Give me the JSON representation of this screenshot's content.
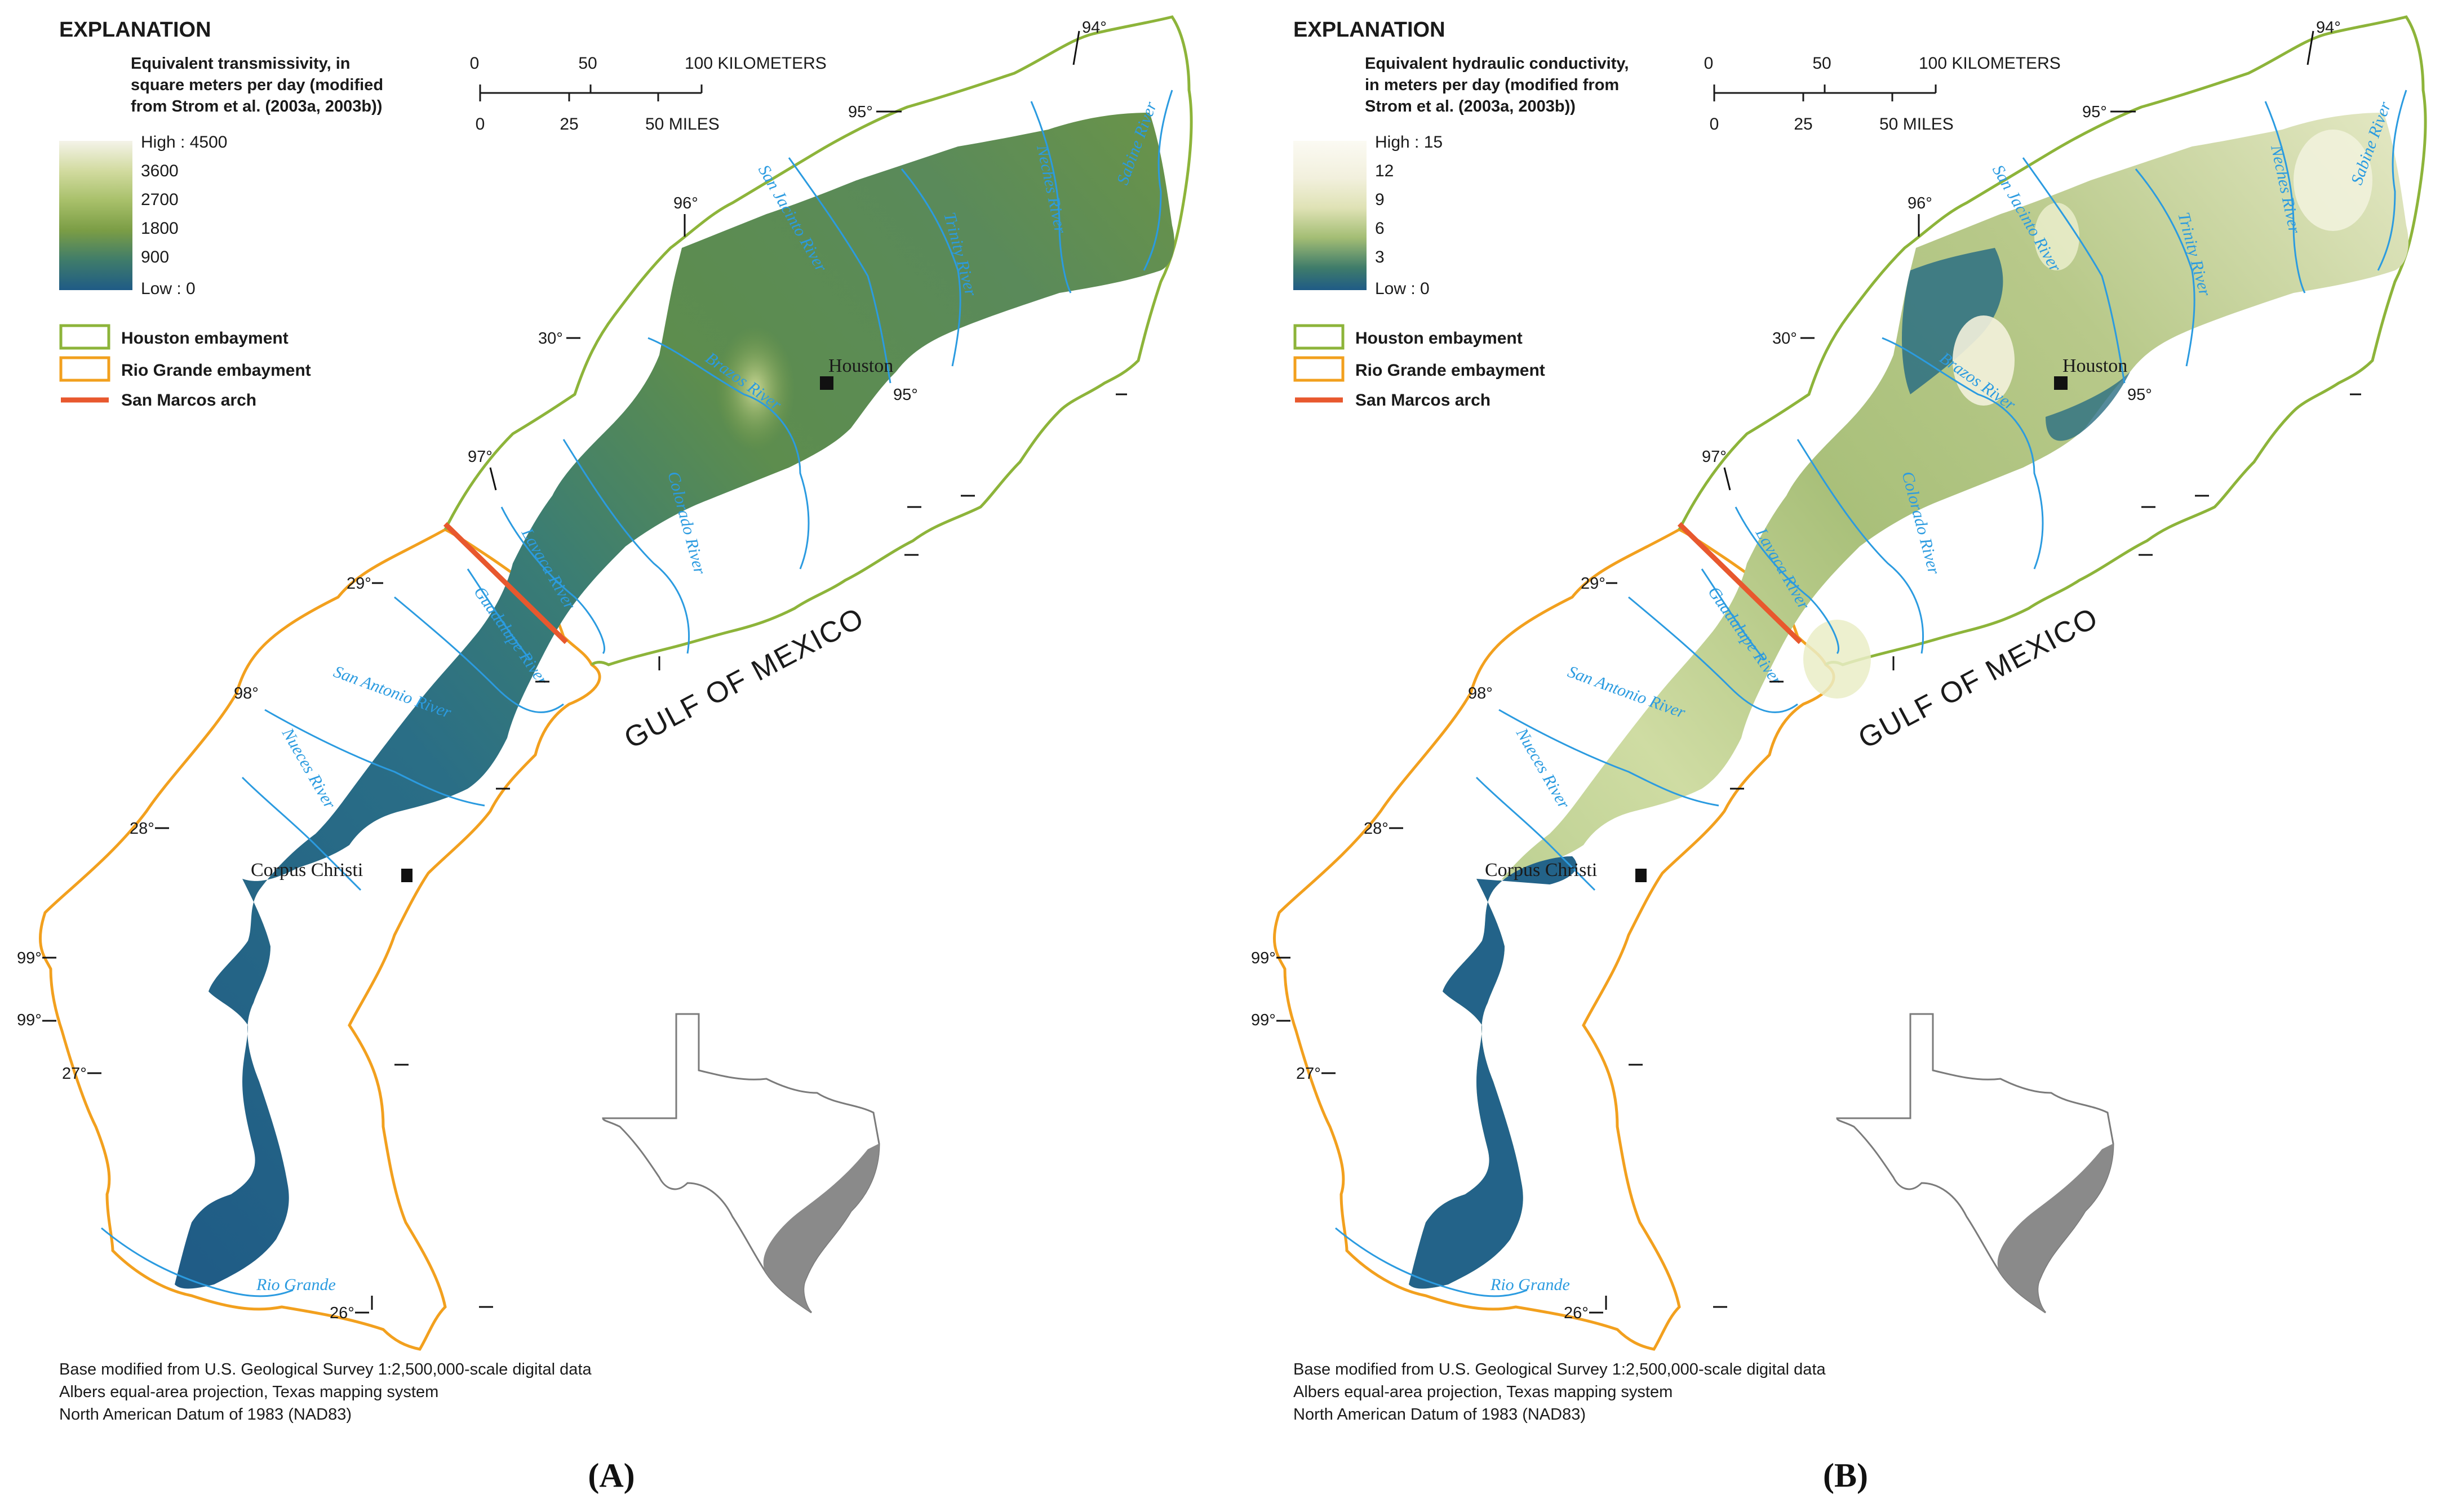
{
  "panels": [
    {
      "id": "A",
      "caption": "(A)",
      "explanation_title": "EXPLANATION",
      "legend_title_lines": [
        "Equivalent transmissivity, in",
        "square meters per day (modified",
        "from Strom et al. (2003a, 2003b))"
      ],
      "ramp_labels": [
        "High : 4500",
        "3600",
        "2700",
        "1800",
        "900",
        "Low : 0"
      ],
      "ramp_colors": [
        "#f4f3e9",
        "#d2dba0",
        "#a8c06a",
        "#7b9d45",
        "#4f8752",
        "#2f6e82",
        "#1f5b86"
      ]
    },
    {
      "id": "B",
      "caption": "(B)",
      "explanation_title": "EXPLANATION",
      "legend_title_lines": [
        "Equivalent hydraulic conductivity,",
        "in meters per day (modified from",
        "Strom et al. (2003a, 2003b))"
      ],
      "ramp_labels": [
        "High : 15",
        "12",
        "9",
        "6",
        "3",
        "Low : 0"
      ],
      "ramp_colors": [
        "#fbfaf3",
        "#f2f0dd",
        "#e0e3b9",
        "#b6c985",
        "#6f9a56",
        "#2e6f7d",
        "#1f5b86"
      ]
    }
  ],
  "legend": {
    "houston": "Houston embayment",
    "rio_grande": "Rio Grande embayment",
    "san_marcos": "San Marcos arch",
    "houston_color": "#8db43a",
    "rio_grande_color": "#f2a01e",
    "arch_color": "#e8582e"
  },
  "scale": {
    "km_ticks": [
      "0",
      "50",
      "100 KILOMETERS"
    ],
    "mile_ticks": [
      "0",
      "25",
      "50 MILES"
    ]
  },
  "longitudes": [
    "94°",
    "95°",
    "96°",
    "97°",
    "98°",
    "99°",
    "99°",
    "95°"
  ],
  "latitudes": [
    "30°",
    "29°",
    "28°",
    "27°",
    "26°"
  ],
  "rivers": {
    "sabine": "Sabine River",
    "neches": "Neches River",
    "trinity": "Trinity River",
    "san_jacinto": "San Jacinto River",
    "brazos": "Brazos River",
    "colorado": "Colorado River",
    "lavaca": "Lavaca River",
    "guadalupe": "Guadalupe River",
    "san_antonio": "San Antonio River",
    "nueces": "Nueces River",
    "rio_grande": "Rio Grande"
  },
  "river_color": "#2b9be0",
  "gulf_label": "GULF OF MEXICO",
  "cities": {
    "houston": "Houston",
    "corpus": "Corpus Christi"
  },
  "credits": [
    "Base modified from U.S. Geological Survey 1:2,500,000-scale digital data",
    "Albers equal-area projection, Texas mapping system",
    "North American Datum of 1983 (NAD83)"
  ]
}
